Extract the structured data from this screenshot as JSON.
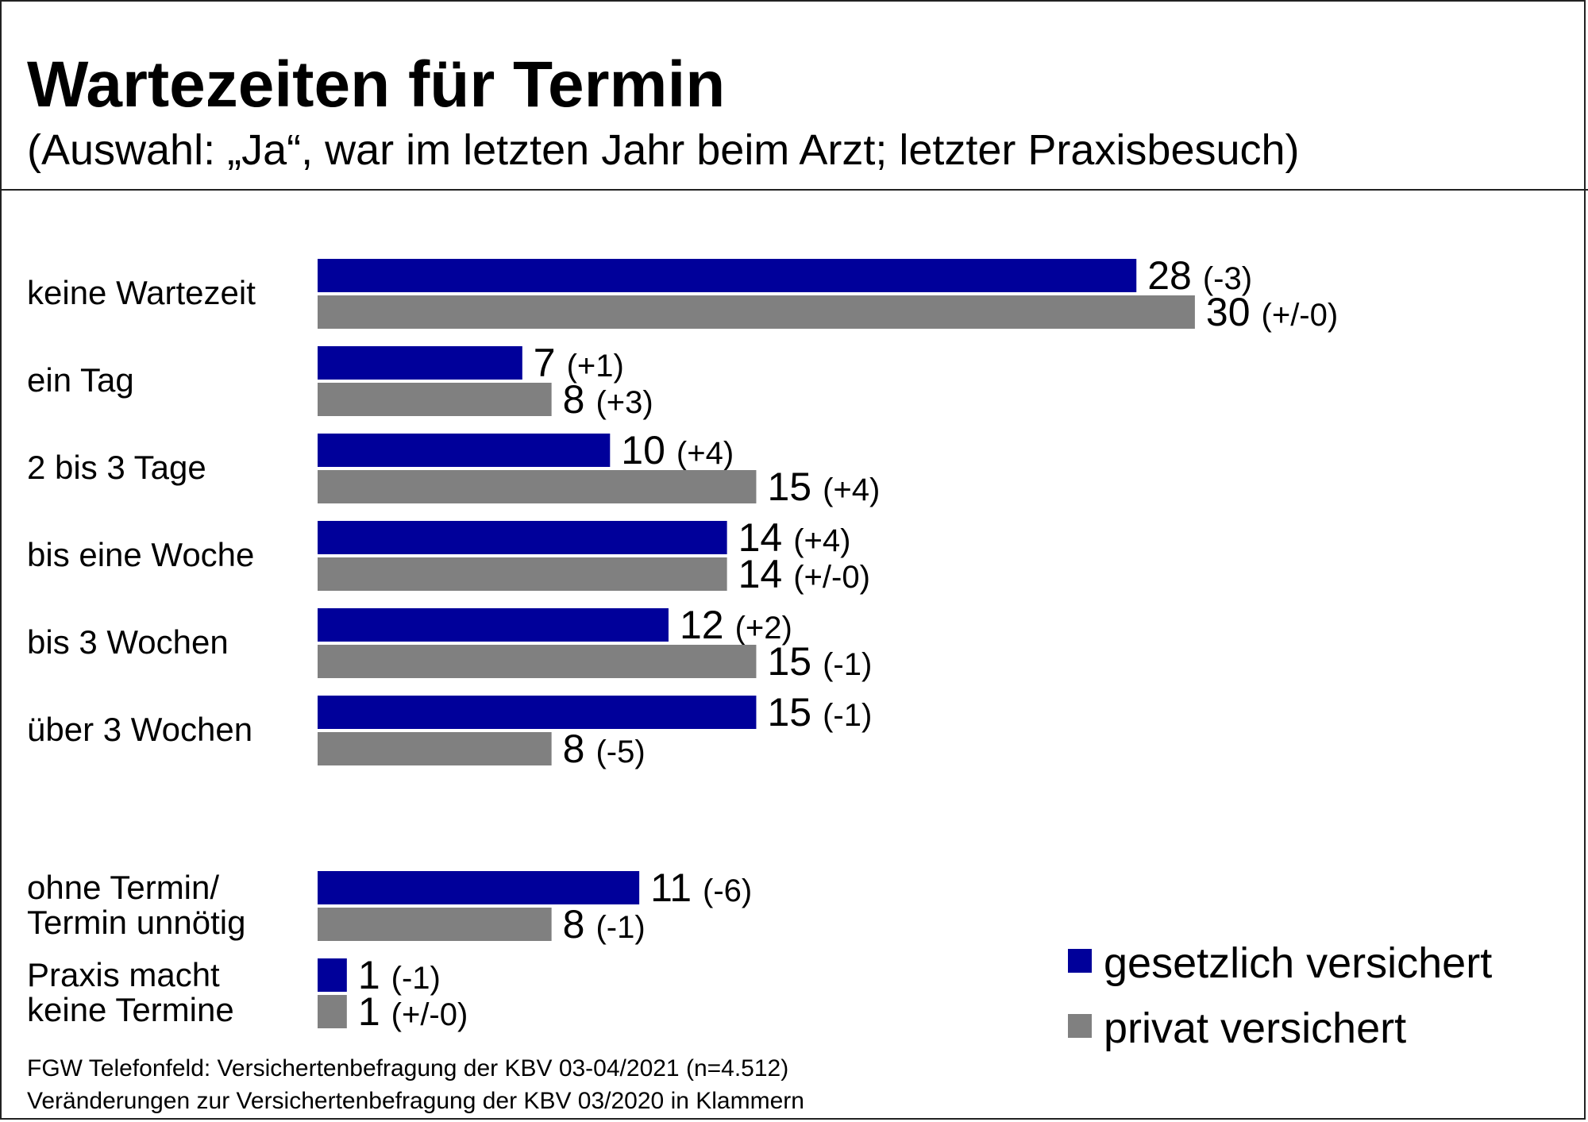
{
  "chart_data": {
    "type": "bar",
    "orientation": "horizontal",
    "title": "Wartezeiten für Termin",
    "subtitle": "(Auswahl: „Ja“, war im letzten Jahr beim Arzt; letzter Praxisbesuch)",
    "categories": [
      [
        "keine Wartezeit"
      ],
      [
        "ein Tag"
      ],
      [
        "2 bis 3 Tage"
      ],
      [
        "bis eine Woche"
      ],
      [
        "bis 3 Wochen"
      ],
      [
        "über 3 Wochen"
      ],
      [
        "ohne Termin/",
        "Termin unnötig"
      ],
      [
        "Praxis macht",
        "keine Termine"
      ]
    ],
    "series": [
      {
        "name": "gesetzlich versichert",
        "color": "#00009a",
        "values": [
          28,
          7,
          10,
          14,
          12,
          15,
          11,
          1
        ],
        "changes": [
          "(-3)",
          "(+1)",
          "(+4)",
          "(+4)",
          "(+2)",
          "(-1)",
          "(-6)",
          "(-1)"
        ]
      },
      {
        "name": "privat versichert",
        "color": "#808080",
        "values": [
          30,
          8,
          15,
          14,
          15,
          8,
          8,
          1
        ],
        "changes": [
          "(+/-0)",
          "(+3)",
          "(+4)",
          "(+/-0)",
          "(-1)",
          "(-5)",
          "(-1)",
          "(+/-0)"
        ]
      }
    ],
    "grid": false,
    "legend": "bottom-right"
  },
  "footer": {
    "line1": "FGW Telefonfeld: Versichertenbefragung der KBV 03-04/2021 (n=4.512)",
    "line2": "Veränderungen zur Versichertenbefragung der KBV 03/2020 in Klammern"
  }
}
